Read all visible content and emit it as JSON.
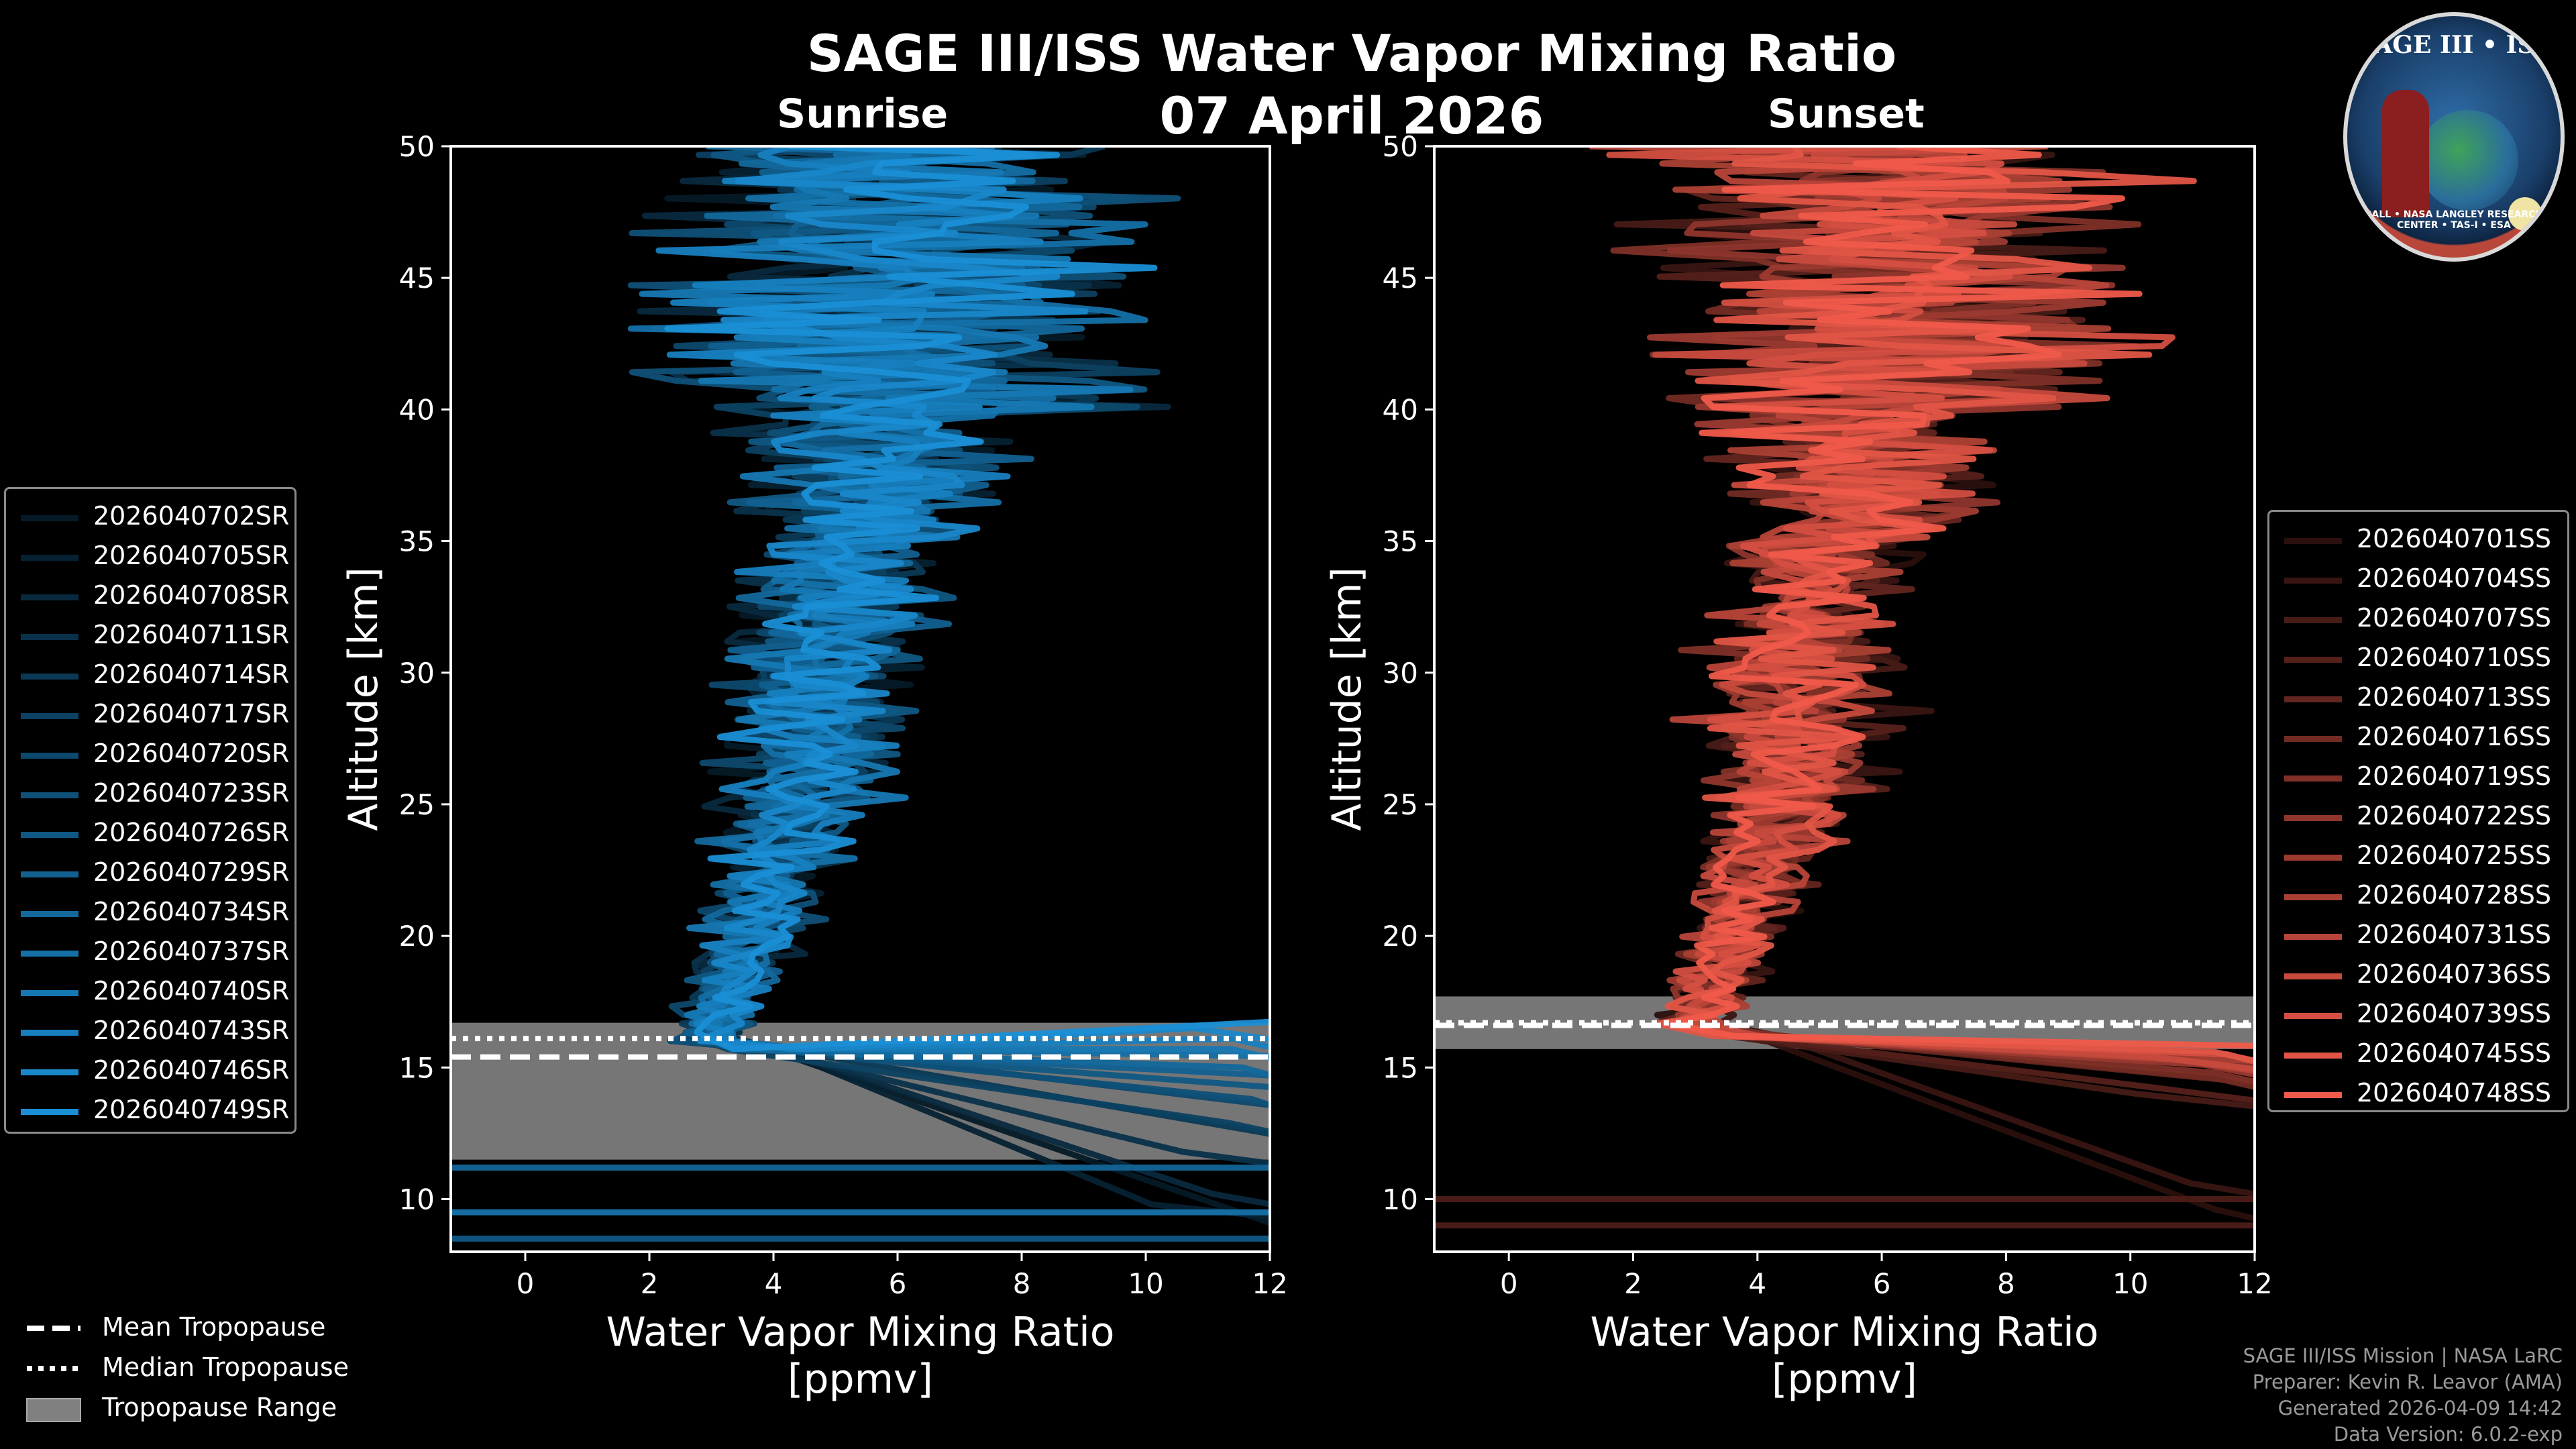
{
  "title": "SAGE III/ISS Water Vapor Mixing Ratio",
  "date": "07 April 2026",
  "panels": {
    "sunrise": {
      "subtitle": "Sunrise"
    },
    "sunset": {
      "subtitle": "Sunset"
    }
  },
  "logo": {
    "text": "SAGE III • ISS",
    "ring_text": "BALL • NASA LANGLEY RESEARCH CENTER • TAS-I • ESA"
  },
  "footer": {
    "line1": "SAGE III/ISS Mission | NASA LaRC",
    "line2": "Preparer: Kevin R. Leavor (AMA)",
    "line3": "Generated 2026-04-09 14:42",
    "line4": "Data Version: 6.0.2-exp"
  },
  "tropopause_legend": {
    "mean": "Mean Tropopause",
    "median": "Median Tropopause",
    "range": "Tropopause Range"
  },
  "colors": {
    "sunrise_line": "#1a8fd6",
    "sunset_line": "#f05a4a",
    "tropopause_band": "#808080",
    "background": "#000000"
  },
  "chart_data": [
    {
      "type": "line",
      "panel": "sunrise",
      "title": "Sunrise",
      "xlabel": "Water Vapor Mixing Ratio",
      "xlabel2": "[ppmv]",
      "ylabel": "Altitude [km]",
      "xlim": [
        -1.2,
        12
      ],
      "ylim": [
        8,
        50
      ],
      "xticks": [
        0,
        2,
        4,
        6,
        8,
        10,
        12
      ],
      "yticks": [
        10,
        15,
        20,
        25,
        30,
        35,
        40,
        45,
        50
      ],
      "tropopause": {
        "mean": 15.4,
        "median": 16.1,
        "range": [
          11.5,
          16.7
        ]
      },
      "lowest_profile_alt": 16.0,
      "series": [
        {
          "name": "2026040702SR",
          "base_altitude": 8.3
        },
        {
          "name": "2026040705SR",
          "base_altitude": 9.2
        },
        {
          "name": "2026040708SR",
          "base_altitude": 9.6
        },
        {
          "name": "2026040711SR",
          "base_altitude": 11.2
        },
        {
          "name": "2026040714SR",
          "base_altitude": 11.9
        },
        {
          "name": "2026040717SR",
          "base_altitude": 12.3
        },
        {
          "name": "2026040720SR",
          "base_altitude": 12.8
        },
        {
          "name": "2026040723SR",
          "base_altitude": 13.2
        },
        {
          "name": "2026040726SR",
          "base_altitude": 13.6
        },
        {
          "name": "2026040729SR",
          "base_altitude": 14.0
        },
        {
          "name": "2026040734SR",
          "base_altitude": 14.4
        },
        {
          "name": "2026040737SR",
          "base_altitude": 14.8
        },
        {
          "name": "2026040740SR",
          "base_altitude": 15.1
        },
        {
          "name": "2026040743SR",
          "base_altitude": 15.5
        },
        {
          "name": "2026040746SR",
          "base_altitude": 15.9
        },
        {
          "name": "2026040749SR",
          "base_altitude": 16.2
        }
      ]
    },
    {
      "type": "line",
      "panel": "sunset",
      "title": "Sunset",
      "xlabel": "Water Vapor Mixing Ratio",
      "xlabel2": "[ppmv]",
      "ylabel": "Altitude [km]",
      "xlim": [
        -1.2,
        12
      ],
      "ylim": [
        8,
        50
      ],
      "xticks": [
        0,
        2,
        4,
        6,
        8,
        10,
        12
      ],
      "yticks": [
        10,
        15,
        20,
        25,
        30,
        35,
        40,
        45,
        50
      ],
      "tropopause": {
        "mean": 16.6,
        "median": 16.7,
        "range": [
          15.7,
          17.7
        ]
      },
      "lowest_profile_alt": 16.5,
      "series": [
        {
          "name": "2026040701SS",
          "base_altitude": 9.0
        },
        {
          "name": "2026040704SS",
          "base_altitude": 10.0
        },
        {
          "name": "2026040707SS",
          "base_altitude": 13.4
        },
        {
          "name": "2026040710SS",
          "base_altitude": 13.6
        },
        {
          "name": "2026040713SS",
          "base_altitude": 13.8
        },
        {
          "name": "2026040716SS",
          "base_altitude": 14.0
        },
        {
          "name": "2026040719SS",
          "base_altitude": 14.2
        },
        {
          "name": "2026040722SS",
          "base_altitude": 14.4
        },
        {
          "name": "2026040725SS",
          "base_altitude": 14.5
        },
        {
          "name": "2026040728SS",
          "base_altitude": 14.6
        },
        {
          "name": "2026040731SS",
          "base_altitude": 14.7
        },
        {
          "name": "2026040736SS",
          "base_altitude": 14.8
        },
        {
          "name": "2026040739SS",
          "base_altitude": 14.9
        },
        {
          "name": "2026040745SS",
          "base_altitude": 15.0
        },
        {
          "name": "2026040748SS",
          "base_altitude": 15.2
        }
      ]
    }
  ]
}
